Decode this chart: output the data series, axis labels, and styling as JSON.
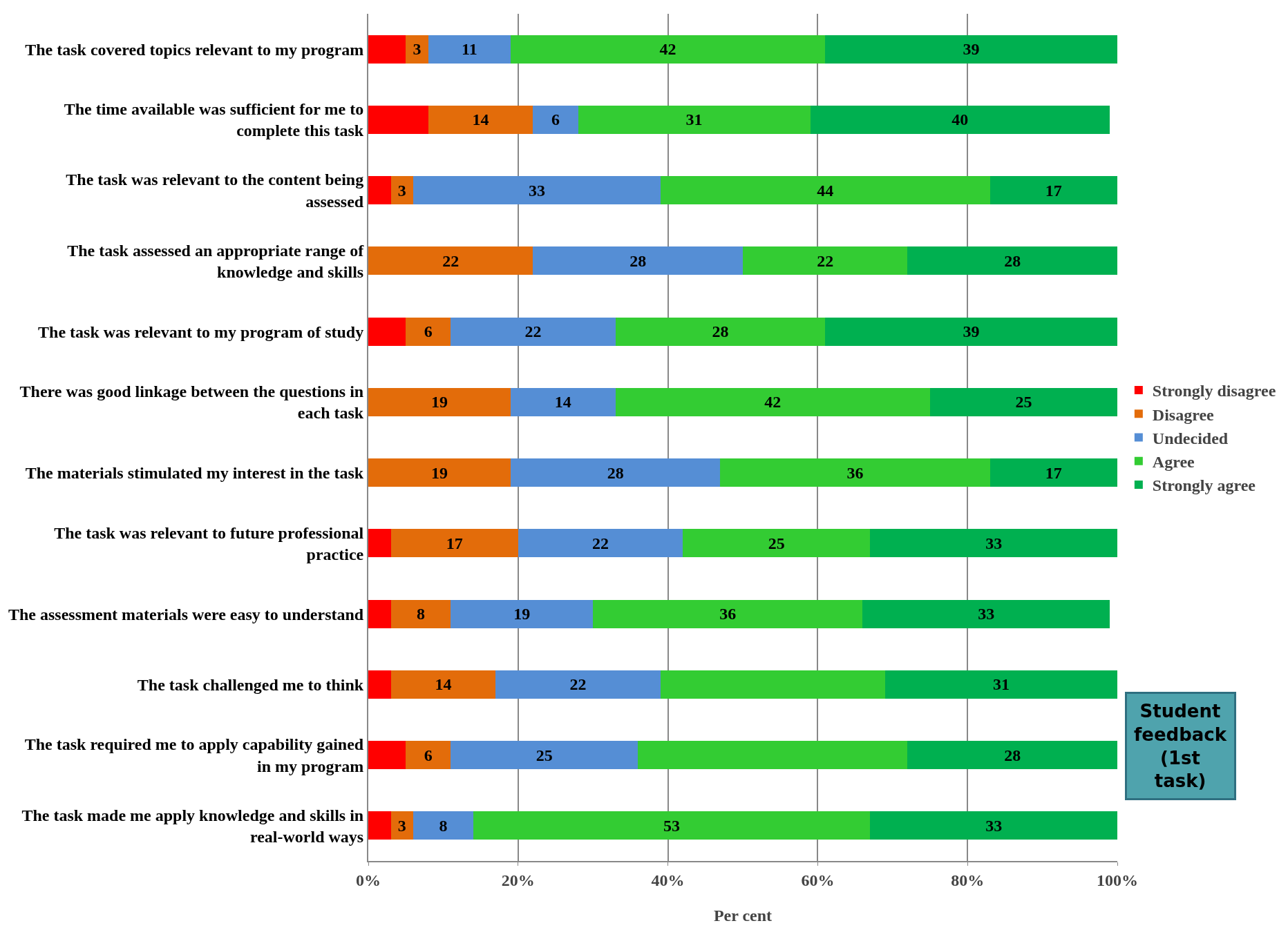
{
  "chart_data": {
    "type": "bar",
    "orientation": "horizontal",
    "stacked": true,
    "categories": [
      "The task covered topics relevant to my program",
      "The time available was sufficient for me to complete this task",
      "The task was relevant to the content being assessed",
      "The task assessed an appropriate range of knowledge and skills",
      "The task was relevant to my program of study",
      "There was good linkage between the questions in each task",
      "The materials stimulated my interest in the task",
      "The task was relevant to future professional practice",
      "The assessment materials were easy to understand",
      "The task challenged me to think",
      "The task required me to apply capability gained in my program",
      "The task made me apply knowledge and skills in real-world ways"
    ],
    "series": [
      {
        "name": "Strongly disagree",
        "color": "#ff0000",
        "values": [
          5,
          8,
          3,
          null,
          5,
          null,
          null,
          3,
          3,
          3,
          5,
          3
        ],
        "value_labels": [
          null,
          null,
          null,
          null,
          null,
          null,
          null,
          null,
          null,
          null,
          null,
          null
        ]
      },
      {
        "name": "Disagree",
        "color": "#e36c0a",
        "values": [
          3,
          14,
          3,
          22,
          6,
          19,
          19,
          17,
          8,
          14,
          6,
          3
        ],
        "value_labels": [
          "3",
          "14",
          "3",
          "22",
          "6",
          "19",
          "19",
          "17",
          "8",
          "14",
          "6",
          "3"
        ]
      },
      {
        "name": "Undecided",
        "color": "#558ed5",
        "values": [
          11,
          6,
          33,
          28,
          22,
          14,
          28,
          22,
          19,
          22,
          25,
          8
        ],
        "value_labels": [
          "11",
          "6",
          "33",
          "28",
          "22",
          "14",
          "28",
          "22",
          "19",
          "22",
          "25",
          "8"
        ]
      },
      {
        "name": "Agree",
        "color": "#33cc33",
        "values": [
          42,
          31,
          44,
          22,
          28,
          42,
          36,
          25,
          36,
          30,
          36,
          53
        ],
        "value_labels": [
          "42",
          "31",
          "44",
          "22",
          "28",
          "42",
          "36",
          "25",
          "36",
          null,
          null,
          "53"
        ]
      },
      {
        "name": "Strongly agree",
        "color": "#00b050",
        "values": [
          39,
          40,
          17,
          28,
          39,
          25,
          17,
          33,
          33,
          31,
          28,
          33
        ],
        "value_labels": [
          "39",
          "40",
          "17",
          "28",
          "39",
          "25",
          "17",
          "33",
          "33",
          "31",
          "28",
          "33"
        ]
      }
    ],
    "xlim": [
      0,
      100
    ],
    "xticks": [
      {
        "value": 0,
        "label": "0%"
      },
      {
        "value": 20,
        "label": "20%"
      },
      {
        "value": 40,
        "label": "40%"
      },
      {
        "value": 60,
        "label": "60%"
      },
      {
        "value": 80,
        "label": "80%"
      },
      {
        "value": 100,
        "label": "100%"
      }
    ],
    "xlabel": "Per cent",
    "grid": "x",
    "legend": "right",
    "annotations": [
      "Student feedback (1st task)"
    ]
  }
}
